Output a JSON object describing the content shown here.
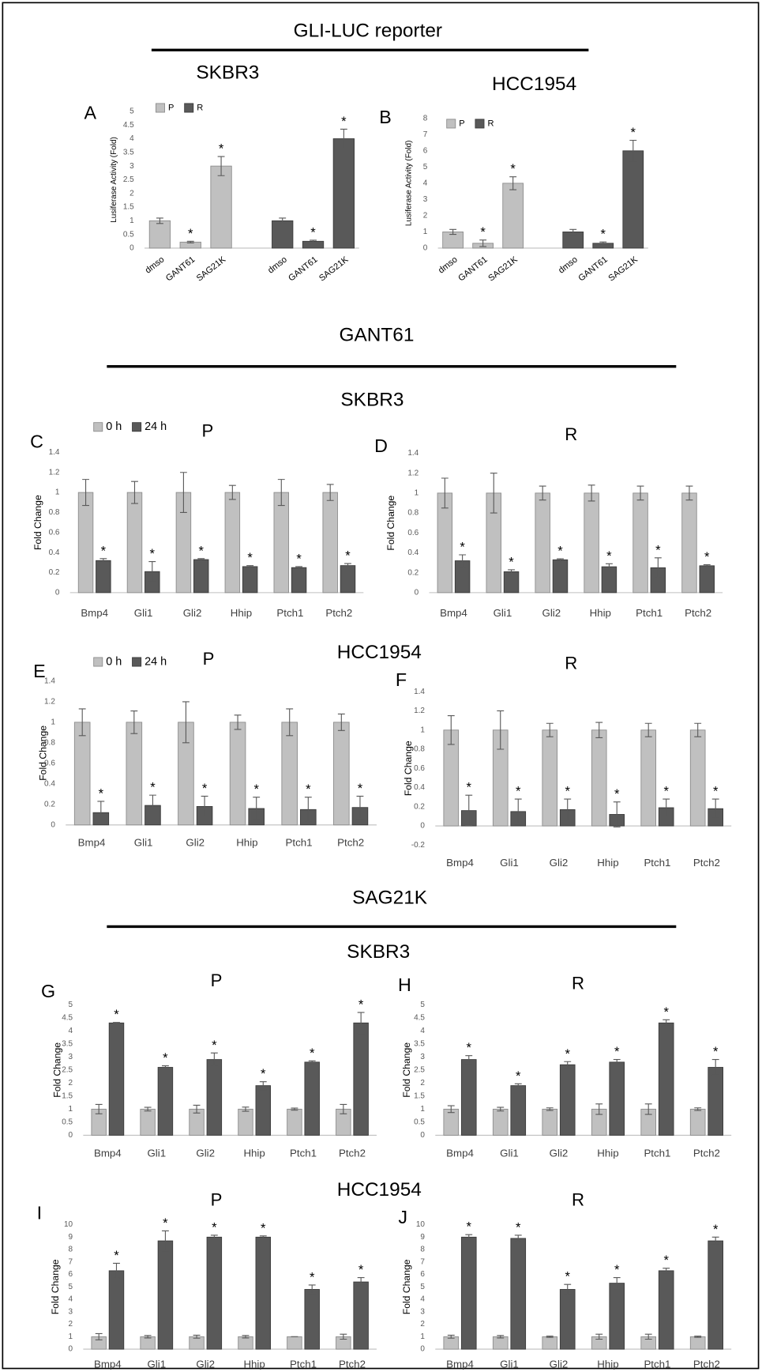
{
  "headings": [
    "GLI-LUC reporter",
    "GANT61",
    "SAG21K"
  ],
  "cell_lines": [
    "SKBR3",
    "HCC1954",
    "SKBR3",
    "HCC1954"
  ],
  "chart_data": [
    {
      "type": "bar",
      "panel": "A",
      "title": "SKBR3",
      "y_label": "Lusiferase Activity (Fold)",
      "group_by": "series",
      "legend": "top-left",
      "categories": [
        "dmso",
        "GANT61",
        "SAG21K"
      ],
      "ylim": [
        0,
        5
      ],
      "yticks": [
        0,
        0.5,
        1,
        1.5,
        2,
        2.5,
        3,
        3.5,
        4,
        4.5,
        5
      ],
      "series": [
        {
          "name": "P",
          "color": "#c0c0c0",
          "values": [
            1,
            0.22,
            3
          ],
          "errors": [
            0.1,
            0.03,
            0.35
          ],
          "markers": [
            null,
            "*",
            "*"
          ]
        },
        {
          "name": "R",
          "color": "#595959",
          "values": [
            1,
            0.25,
            4
          ],
          "errors": [
            0.1,
            0.04,
            0.35
          ],
          "markers": [
            null,
            "*",
            "*"
          ]
        }
      ]
    },
    {
      "type": "bar",
      "panel": "B",
      "title": "HCC1954",
      "y_label": "Lusiferase Activity (Fold)",
      "group_by": "series",
      "legend": "top-left",
      "categories": [
        "dmso",
        "GANT61",
        "SAG21K"
      ],
      "ylim": [
        0,
        8
      ],
      "yticks": [
        0,
        1,
        2,
        3,
        4,
        5,
        6,
        7,
        8
      ],
      "series": [
        {
          "name": "P",
          "color": "#c0c0c0",
          "values": [
            1,
            0.3,
            4
          ],
          "errors": [
            0.15,
            0.2,
            0.4
          ],
          "markers": [
            null,
            "*",
            "*"
          ]
        },
        {
          "name": "R",
          "color": "#595959",
          "values": [
            1,
            0.3,
            6
          ],
          "errors": [
            0.15,
            0.08,
            0.65
          ],
          "markers": [
            null,
            "*",
            "*"
          ]
        }
      ]
    },
    {
      "type": "bar",
      "panel": "C",
      "title": "P",
      "y_label": "Fold Change",
      "legend": "top-left",
      "categories": [
        "Bmp4",
        "Gli1",
        "Gli2",
        "Hhip",
        "Ptch1",
        "Ptch2"
      ],
      "ylim": [
        0,
        1.4
      ],
      "yticks": [
        0,
        0.2,
        0.4,
        0.6,
        0.8,
        1,
        1.2,
        1.4
      ],
      "series": [
        {
          "name": "0 h",
          "color": "#c0c0c0",
          "values": [
            1,
            1,
            1,
            1,
            1,
            1
          ],
          "errors": [
            0.13,
            0.11,
            0.2,
            0.07,
            0.13,
            0.08
          ]
        },
        {
          "name": "24 h",
          "color": "#595959",
          "values": [
            0.32,
            0.21,
            0.33,
            0.26,
            0.25,
            0.27
          ],
          "errors": [
            0.02,
            0.1,
            0.01,
            0.01,
            0.01,
            0.02
          ],
          "markers": [
            "*",
            "*",
            "*",
            "*",
            "*",
            "*"
          ]
        }
      ]
    },
    {
      "type": "bar",
      "panel": "D",
      "title": "R",
      "y_label": "Fold Change",
      "categories": [
        "Bmp4",
        "Gli1",
        "Gli2",
        "Hhip",
        "Ptch1",
        "Ptch2"
      ],
      "ylim": [
        0,
        1.4
      ],
      "yticks": [
        0,
        0.2,
        0.4,
        0.6,
        0.8,
        1,
        1.2,
        1.4
      ],
      "series": [
        {
          "color": "#c0c0c0",
          "values": [
            1,
            1,
            1,
            1,
            1,
            1
          ],
          "errors": [
            0.15,
            0.2,
            0.07,
            0.08,
            0.07,
            0.07
          ]
        },
        {
          "color": "#595959",
          "values": [
            0.32,
            0.21,
            0.33,
            0.26,
            0.25,
            0.27
          ],
          "errors": [
            0.06,
            0.02,
            0.01,
            0.03,
            0.1,
            0.01
          ],
          "markers": [
            "*",
            "*",
            "*",
            "*",
            "*",
            "*"
          ]
        }
      ]
    },
    {
      "type": "bar",
      "panel": "E",
      "title": "P",
      "y_label": "Fold Change",
      "legend": "top-left",
      "categories": [
        "Bmp4",
        "Gli1",
        "Gli2",
        "Hhip",
        "Ptch1",
        "Ptch2"
      ],
      "ylim": [
        0,
        1.4
      ],
      "yticks": [
        0,
        0.2,
        0.4,
        0.6,
        0.8,
        1,
        1.2,
        1.4
      ],
      "series": [
        {
          "name": "0 h",
          "color": "#c0c0c0",
          "values": [
            1,
            1,
            1,
            1,
            1,
            1
          ],
          "errors": [
            0.13,
            0.11,
            0.2,
            0.07,
            0.13,
            0.08
          ]
        },
        {
          "name": "24 h",
          "color": "#595959",
          "values": [
            0.12,
            0.19,
            0.18,
            0.16,
            0.15,
            0.17
          ],
          "errors": [
            0.11,
            0.1,
            0.1,
            0.11,
            0.12,
            0.11
          ],
          "markers": [
            "*",
            "*",
            "*",
            "*",
            "*",
            "*"
          ]
        }
      ]
    },
    {
      "type": "bar",
      "panel": "F",
      "title": "R",
      "y_label": "Fold Change",
      "categories": [
        "Bmp4",
        "Gli1",
        "Gli2",
        "Hhip",
        "Ptch1",
        "Ptch2"
      ],
      "ylim": [
        -0.2,
        1.4
      ],
      "yticks": [
        -0.2,
        0,
        0.2,
        0.4,
        0.6,
        0.8,
        1,
        1.2,
        1.4
      ],
      "series": [
        {
          "color": "#c0c0c0",
          "values": [
            1,
            1,
            1,
            1,
            1,
            1
          ],
          "errors": [
            0.15,
            0.2,
            0.07,
            0.08,
            0.07,
            0.07
          ]
        },
        {
          "color": "#595959",
          "values": [
            0.16,
            0.15,
            0.17,
            0.12,
            0.19,
            0.18
          ],
          "errors": [
            0.16,
            0.13,
            0.11,
            0.13,
            0.09,
            0.1
          ],
          "markers": [
            "*",
            "*",
            "*",
            "*",
            "*",
            "*"
          ]
        }
      ]
    },
    {
      "type": "bar",
      "panel": "G",
      "title": "P",
      "y_label": "Fold Change",
      "categories": [
        "Bmp4",
        "Gli1",
        "Gli2",
        "Hhip",
        "Ptch1",
        "Ptch2"
      ],
      "ylim": [
        0,
        5
      ],
      "yticks": [
        0,
        0.5,
        1,
        1.5,
        2,
        2.5,
        3,
        3.5,
        4,
        4.5,
        5
      ],
      "series": [
        {
          "color": "#c0c0c0",
          "values": [
            1,
            1,
            1,
            1,
            1,
            1
          ],
          "errors": [
            0.18,
            0.07,
            0.15,
            0.08,
            0.04,
            0.18
          ]
        },
        {
          "color": "#595959",
          "values": [
            4.3,
            2.6,
            2.9,
            1.9,
            2.8,
            4.3
          ],
          "errors": [
            0.02,
            0.06,
            0.25,
            0.15,
            0.05,
            0.4
          ],
          "markers": [
            "*",
            "*",
            "*",
            "*",
            "*",
            "*"
          ]
        }
      ]
    },
    {
      "type": "bar",
      "panel": "H",
      "title": "R",
      "y_label": "Fold Change",
      "categories": [
        "Bmp4",
        "Gli1",
        "Gli2",
        "Hhip",
        "Ptch1",
        "Ptch2"
      ],
      "ylim": [
        0,
        5
      ],
      "yticks": [
        0,
        0.5,
        1,
        1.5,
        2,
        2.5,
        3,
        3.5,
        4,
        4.5,
        5
      ],
      "series": [
        {
          "color": "#c0c0c0",
          "values": [
            1,
            1,
            1,
            1,
            1,
            1
          ],
          "errors": [
            0.13,
            0.07,
            0.05,
            0.2,
            0.2,
            0.05
          ]
        },
        {
          "color": "#595959",
          "values": [
            2.9,
            1.9,
            2.7,
            2.8,
            4.3,
            2.6
          ],
          "errors": [
            0.15,
            0.07,
            0.12,
            0.1,
            0.12,
            0.3
          ],
          "markers": [
            "*",
            "*",
            "*",
            "*",
            "*",
            "*"
          ]
        }
      ]
    },
    {
      "type": "bar",
      "panel": "I",
      "title": "P",
      "y_label": "Fold Change",
      "categories": [
        "Bmp4",
        "Gli1",
        "Gli2",
        "Hhip",
        "Ptch1",
        "Ptch2"
      ],
      "ylim": [
        0,
        10
      ],
      "yticks": [
        0,
        1,
        2,
        3,
        4,
        5,
        6,
        7,
        8,
        9,
        10
      ],
      "series": [
        {
          "color": "#c0c0c0",
          "values": [
            1,
            1,
            1,
            1,
            1,
            1
          ],
          "errors": [
            0.25,
            0.1,
            0.12,
            0.1,
            0,
            0.2
          ]
        },
        {
          "color": "#595959",
          "values": [
            6.3,
            8.7,
            9,
            9,
            4.8,
            5.4
          ],
          "errors": [
            0.6,
            0.8,
            0.15,
            0.1,
            0.35,
            0.35
          ],
          "markers": [
            "*",
            "*",
            "*",
            "*",
            "*",
            "*"
          ]
        }
      ]
    },
    {
      "type": "bar",
      "panel": "J",
      "title": "R",
      "y_label": "Fold Change",
      "categories": [
        "Bmp4",
        "Gli1",
        "Gli2",
        "Hhip",
        "Ptch1",
        "Ptch2"
      ],
      "ylim": [
        0,
        10
      ],
      "yticks": [
        0,
        1,
        2,
        3,
        4,
        5,
        6,
        7,
        8,
        9,
        10
      ],
      "series": [
        {
          "color": "#c0c0c0",
          "values": [
            1,
            1,
            1,
            1,
            1,
            1
          ],
          "errors": [
            0.12,
            0.1,
            0.05,
            0.2,
            0.2,
            0.05
          ]
        },
        {
          "color": "#595959",
          "values": [
            9,
            8.9,
            4.8,
            5.3,
            6.3,
            8.7
          ],
          "errors": [
            0.2,
            0.25,
            0.4,
            0.45,
            0.2,
            0.3
          ],
          "markers": [
            "*",
            "*",
            "*",
            "*",
            "*",
            "*"
          ]
        }
      ]
    }
  ]
}
